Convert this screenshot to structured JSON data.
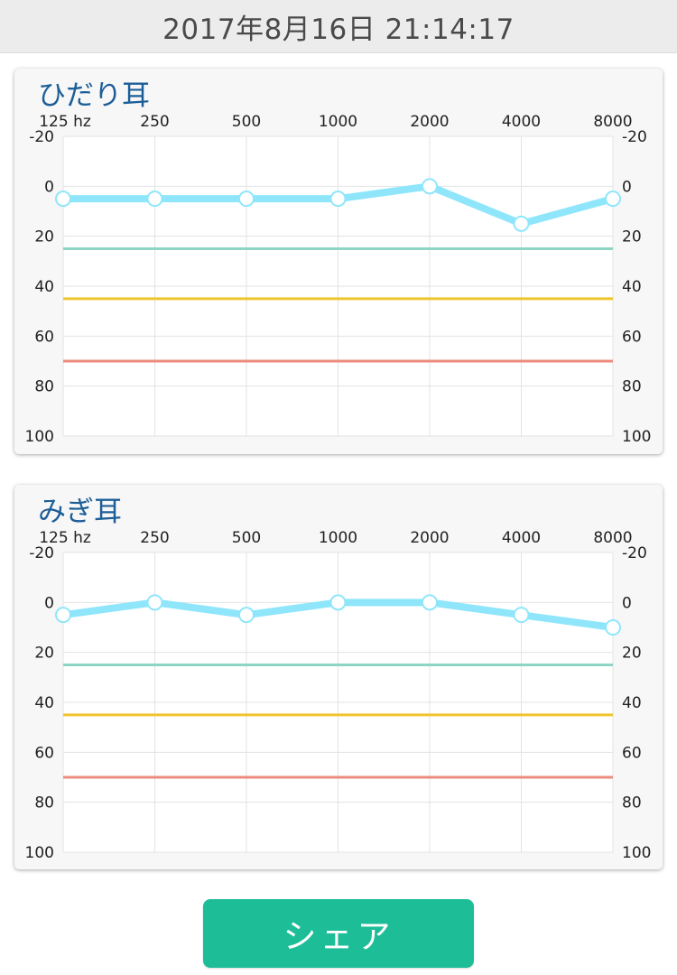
{
  "header": {
    "title": "2017年8月16日 21:14:17"
  },
  "colors": {
    "measurement": "#8fe6fb",
    "threshold_mild": "#8dd6c5",
    "threshold_moderate": "#f0c42c",
    "threshold_severe": "#ee8b7d",
    "grid": "#e3e3e3",
    "title": "#1d5e98",
    "button": "#1dbd98"
  },
  "chart_data": [
    {
      "type": "line",
      "title": "ひだり耳",
      "categories": [
        "125 hz",
        "250",
        "500",
        "1000",
        "2000",
        "4000",
        "8000"
      ],
      "y_ticks": [
        "-20",
        "0",
        "20",
        "40",
        "60",
        "80",
        "100"
      ],
      "ylim": [
        -20,
        100
      ],
      "y_inverted": true,
      "grid": true,
      "series": [
        {
          "values": [
            5,
            5,
            5,
            5,
            0,
            15,
            5
          ]
        }
      ],
      "reference_lines": [
        25,
        45,
        70
      ]
    },
    {
      "type": "line",
      "title": "みぎ耳",
      "categories": [
        "125 hz",
        "250",
        "500",
        "1000",
        "2000",
        "4000",
        "8000"
      ],
      "y_ticks": [
        "-20",
        "0",
        "20",
        "40",
        "60",
        "80",
        "100"
      ],
      "ylim": [
        -20,
        100
      ],
      "y_inverted": true,
      "grid": true,
      "series": [
        {
          "values": [
            5,
            0,
            5,
            0,
            0,
            5,
            10
          ]
        }
      ],
      "reference_lines": [
        25,
        45,
        70
      ]
    }
  ],
  "share_button": {
    "label": "シェア"
  }
}
